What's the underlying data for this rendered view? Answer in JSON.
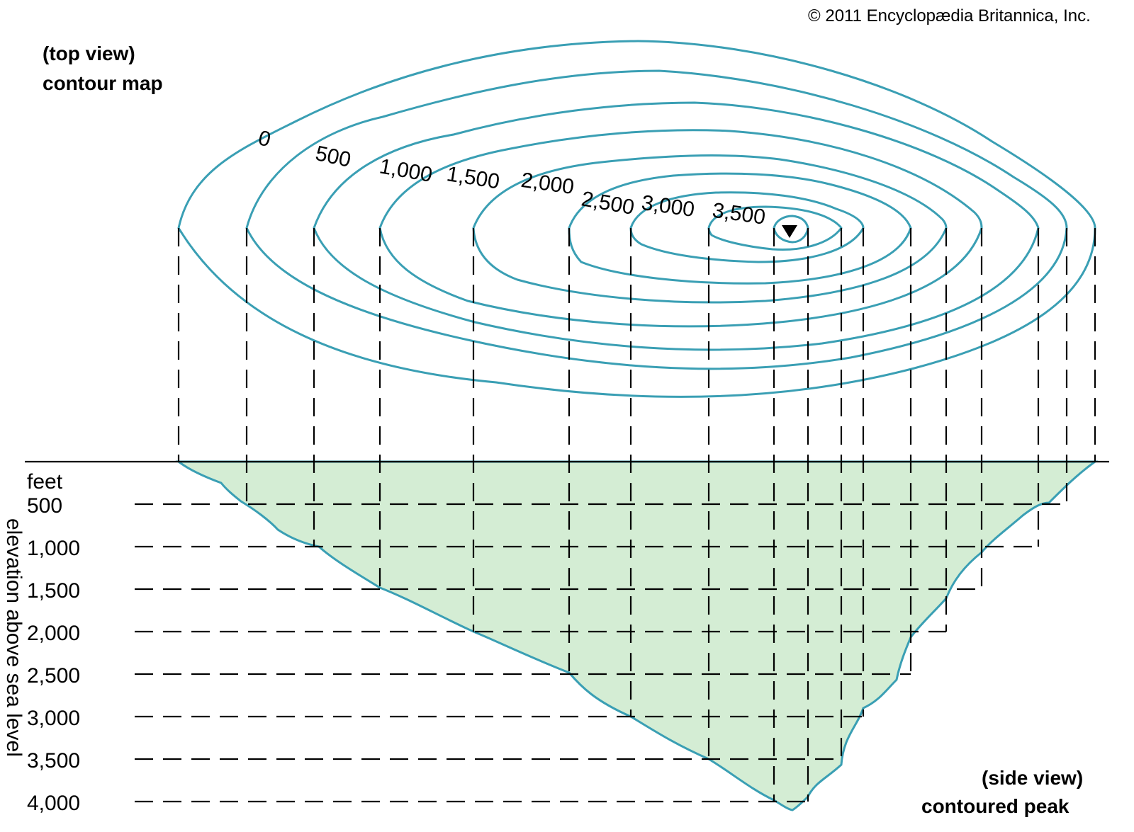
{
  "copyright": "© 2011 Encyclopædia Britannica, Inc.",
  "top_view": {
    "title": "contour map",
    "subtitle": "(top view)"
  },
  "side_view": {
    "title": "contoured peak",
    "subtitle": "(side view)"
  },
  "contour_labels": [
    "0",
    "500",
    "1,000",
    "1,500",
    "2,000",
    "2,500",
    "3,000",
    "3,500"
  ],
  "axis": {
    "unit": "feet",
    "title": "elevation above sea level",
    "ticks": [
      "500",
      "1,000",
      "1,500",
      "2,000",
      "2,500",
      "3,000",
      "3,500",
      "4,000"
    ]
  },
  "colors": {
    "fill": "#d4edd4",
    "stroke": "#3a9fb4",
    "ink": "#000000"
  },
  "mirrored": true
}
